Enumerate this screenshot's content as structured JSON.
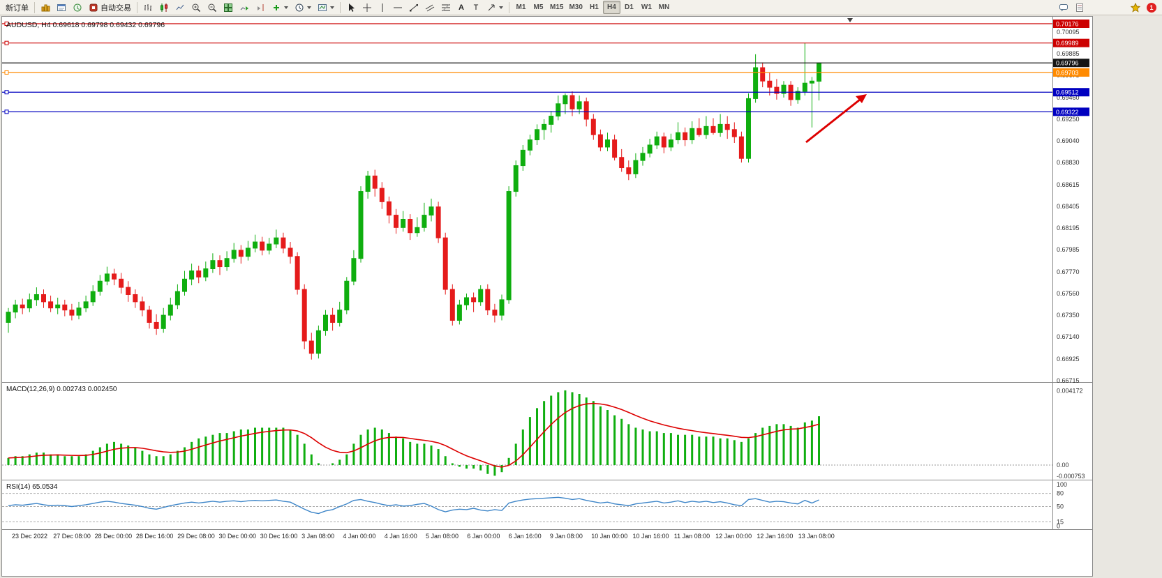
{
  "toolbar": {
    "new_order_label": "新订单",
    "auto_trading_label": "自动交易",
    "text_tool_label": "A",
    "label_tool_label": "T",
    "timeframes": [
      "M1",
      "M5",
      "M15",
      "M30",
      "H1",
      "H4",
      "D1",
      "W1",
      "MN"
    ],
    "active_timeframe": "H4",
    "notification_badge": "1"
  },
  "chart_data": {
    "type": "candlestick",
    "symbol": "AUDUSD",
    "timeframe": "H4",
    "title": "AUDUSD, H4 0.69618 0.69798 0.69432 0.69796",
    "colors": {
      "up": "#0fae0f",
      "down": "#e51b1b",
      "macd_hist": "#0fae0f",
      "macd_signal": "#dd0000",
      "rsi": "#3d85c8",
      "arrow": "#dd0000",
      "axis_text": "#333333"
    },
    "y_ticks": [
      "0.70095",
      "0.69885",
      "0.69675",
      "0.69460",
      "0.69250",
      "0.69040",
      "0.68830",
      "0.68615",
      "0.68405",
      "0.68195",
      "0.67985",
      "0.67770",
      "0.67560",
      "0.67350",
      "0.67140",
      "0.66925",
      "0.66715"
    ],
    "horizontal_lines": [
      {
        "price": 0.70176,
        "label": "0.70176",
        "color": "#cc0000",
        "handle": true
      },
      {
        "price": 0.69989,
        "label": "0.69989",
        "color": "#cc0000",
        "handle": true
      },
      {
        "price": 0.69796,
        "label": "0.69796",
        "color": "#151515",
        "handle": false
      },
      {
        "price": 0.69703,
        "label": "0.69703",
        "color": "#ff8a00",
        "handle": true
      },
      {
        "price": 0.69512,
        "label": "0.69512",
        "color": "#0000c0",
        "handle": true
      },
      {
        "price": 0.69322,
        "label": "0.69322",
        "color": "#0000c0",
        "handle": true
      }
    ],
    "x_labels": [
      "23 Dec 2022",
      "27 Dec 08:00",
      "28 Dec 00:00",
      "28 Dec 16:00",
      "29 Dec 08:00",
      "30 Dec 00:00",
      "30 Dec 16:00",
      "3 Jan 08:00",
      "4 Jan 00:00",
      "4 Jan 16:00",
      "5 Jan 08:00",
      "6 Jan 00:00",
      "6 Jan 16:00",
      "9 Jan 08:00",
      "10 Jan 00:00",
      "10 Jan 16:00",
      "11 Jan 08:00",
      "12 Jan 00:00",
      "12 Jan 16:00",
      "13 Jan 08:00"
    ],
    "candles_ohlc": [
      [
        0.6728,
        0.6742,
        0.6718,
        0.6738
      ],
      [
        0.6738,
        0.675,
        0.6732,
        0.6745
      ],
      [
        0.6745,
        0.6751,
        0.6736,
        0.6742
      ],
      [
        0.6742,
        0.6756,
        0.6738,
        0.675
      ],
      [
        0.675,
        0.6762,
        0.6744,
        0.6755
      ],
      [
        0.6755,
        0.676,
        0.6742,
        0.6748
      ],
      [
        0.6748,
        0.6754,
        0.6738,
        0.6742
      ],
      [
        0.6742,
        0.6752,
        0.6736,
        0.6745
      ],
      [
        0.6745,
        0.675,
        0.6734,
        0.674
      ],
      [
        0.674,
        0.6746,
        0.673,
        0.6735
      ],
      [
        0.6735,
        0.6748,
        0.6731,
        0.6742
      ],
      [
        0.6742,
        0.6754,
        0.6738,
        0.6748
      ],
      [
        0.6748,
        0.6764,
        0.6744,
        0.6758
      ],
      [
        0.6758,
        0.6774,
        0.6754,
        0.6768
      ],
      [
        0.6768,
        0.6782,
        0.6764,
        0.6775
      ],
      [
        0.6775,
        0.678,
        0.6764,
        0.677
      ],
      [
        0.677,
        0.6776,
        0.6756,
        0.6762
      ],
      [
        0.6762,
        0.6768,
        0.6748,
        0.6755
      ],
      [
        0.6755,
        0.676,
        0.6742,
        0.6748
      ],
      [
        0.6748,
        0.6753,
        0.6734,
        0.674
      ],
      [
        0.674,
        0.6744,
        0.6722,
        0.6728
      ],
      [
        0.6728,
        0.6736,
        0.6716,
        0.6722
      ],
      [
        0.6722,
        0.6742,
        0.6718,
        0.6735
      ],
      [
        0.6735,
        0.6752,
        0.673,
        0.6745
      ],
      [
        0.6745,
        0.6765,
        0.6741,
        0.6758
      ],
      [
        0.6758,
        0.6778,
        0.6754,
        0.677
      ],
      [
        0.677,
        0.6785,
        0.6764,
        0.6778
      ],
      [
        0.6778,
        0.6783,
        0.6766,
        0.6772
      ],
      [
        0.6772,
        0.6787,
        0.6768,
        0.678
      ],
      [
        0.678,
        0.6795,
        0.6776,
        0.6788
      ],
      [
        0.6788,
        0.6793,
        0.6774,
        0.6782
      ],
      [
        0.6782,
        0.6797,
        0.6778,
        0.679
      ],
      [
        0.679,
        0.6805,
        0.6786,
        0.6798
      ],
      [
        0.6798,
        0.6803,
        0.6785,
        0.6792
      ],
      [
        0.6792,
        0.6807,
        0.6788,
        0.68
      ],
      [
        0.68,
        0.6813,
        0.6796,
        0.6806
      ],
      [
        0.6806,
        0.6811,
        0.6793,
        0.6798
      ],
      [
        0.6798,
        0.681,
        0.6794,
        0.6804
      ],
      [
        0.6804,
        0.6818,
        0.68,
        0.681
      ],
      [
        0.681,
        0.6815,
        0.6795,
        0.68
      ],
      [
        0.68,
        0.6806,
        0.6785,
        0.6792
      ],
      [
        0.6792,
        0.6796,
        0.6755,
        0.676
      ],
      [
        0.676,
        0.6765,
        0.6702,
        0.671
      ],
      [
        0.671,
        0.6718,
        0.6692,
        0.6698
      ],
      [
        0.6698,
        0.6725,
        0.6693,
        0.672
      ],
      [
        0.672,
        0.674,
        0.6715,
        0.6735
      ],
      [
        0.6735,
        0.6742,
        0.672,
        0.6728
      ],
      [
        0.6728,
        0.6748,
        0.6724,
        0.674
      ],
      [
        0.674,
        0.6772,
        0.6736,
        0.6768
      ],
      [
        0.6768,
        0.6798,
        0.6764,
        0.679
      ],
      [
        0.679,
        0.686,
        0.6786,
        0.6855
      ],
      [
        0.6855,
        0.6875,
        0.6848,
        0.687
      ],
      [
        0.687,
        0.6876,
        0.685,
        0.6858
      ],
      [
        0.6858,
        0.6864,
        0.6838,
        0.6845
      ],
      [
        0.6845,
        0.685,
        0.6824,
        0.6832
      ],
      [
        0.6832,
        0.6838,
        0.6814,
        0.682
      ],
      [
        0.682,
        0.6836,
        0.6816,
        0.6828
      ],
      [
        0.6828,
        0.6833,
        0.6808,
        0.6815
      ],
      [
        0.6815,
        0.683,
        0.6811,
        0.682
      ],
      [
        0.682,
        0.6844,
        0.6816,
        0.6832
      ],
      [
        0.6832,
        0.6848,
        0.6826,
        0.684
      ],
      [
        0.684,
        0.6845,
        0.6805,
        0.681
      ],
      [
        0.681,
        0.6815,
        0.6755,
        0.676
      ],
      [
        0.676,
        0.6765,
        0.6725,
        0.673
      ],
      [
        0.673,
        0.675,
        0.6726,
        0.6745
      ],
      [
        0.6745,
        0.6756,
        0.674,
        0.6752
      ],
      [
        0.6752,
        0.6757,
        0.6738,
        0.6748
      ],
      [
        0.6748,
        0.6764,
        0.6744,
        0.676
      ],
      [
        0.676,
        0.6765,
        0.6735,
        0.674
      ],
      [
        0.674,
        0.6746,
        0.6728,
        0.6735
      ],
      [
        0.6735,
        0.6755,
        0.673,
        0.675
      ],
      [
        0.675,
        0.686,
        0.6746,
        0.6855
      ],
      [
        0.6855,
        0.6885,
        0.685,
        0.688
      ],
      [
        0.688,
        0.69,
        0.6875,
        0.6895
      ],
      [
        0.6895,
        0.691,
        0.689,
        0.6905
      ],
      [
        0.6905,
        0.692,
        0.69,
        0.6915
      ],
      [
        0.6915,
        0.6925,
        0.6905,
        0.692
      ],
      [
        0.692,
        0.6933,
        0.6912,
        0.6928
      ],
      [
        0.6928,
        0.6948,
        0.6924,
        0.694
      ],
      [
        0.694,
        0.695,
        0.693,
        0.6948
      ],
      [
        0.6948,
        0.6952,
        0.6928,
        0.6935
      ],
      [
        0.6935,
        0.6948,
        0.693,
        0.6942
      ],
      [
        0.6942,
        0.6946,
        0.6918,
        0.6925
      ],
      [
        0.6925,
        0.693,
        0.6905,
        0.691
      ],
      [
        0.691,
        0.6915,
        0.6894,
        0.6898
      ],
      [
        0.6898,
        0.6912,
        0.6894,
        0.6905
      ],
      [
        0.6905,
        0.691,
        0.6885,
        0.6888
      ],
      [
        0.6888,
        0.6896,
        0.6874,
        0.6878
      ],
      [
        0.6878,
        0.6885,
        0.6866,
        0.6872
      ],
      [
        0.6872,
        0.6892,
        0.6868,
        0.6885
      ],
      [
        0.6885,
        0.6898,
        0.688,
        0.6892
      ],
      [
        0.6892,
        0.6906,
        0.6888,
        0.69
      ],
      [
        0.69,
        0.6913,
        0.6896,
        0.6908
      ],
      [
        0.6908,
        0.6912,
        0.6892,
        0.6898
      ],
      [
        0.6898,
        0.6911,
        0.6894,
        0.6905
      ],
      [
        0.6905,
        0.6922,
        0.6901,
        0.6912
      ],
      [
        0.6912,
        0.6917,
        0.6899,
        0.6905
      ],
      [
        0.6905,
        0.6923,
        0.6901,
        0.6916
      ],
      [
        0.6916,
        0.6926,
        0.6908,
        0.691
      ],
      [
        0.691,
        0.6928,
        0.6906,
        0.6918
      ],
      [
        0.6918,
        0.6926,
        0.691,
        0.6912
      ],
      [
        0.6912,
        0.693,
        0.6908,
        0.692
      ],
      [
        0.692,
        0.6928,
        0.6906,
        0.6915
      ],
      [
        0.6915,
        0.6922,
        0.6902,
        0.6908
      ],
      [
        0.6908,
        0.6913,
        0.6883,
        0.6887
      ],
      [
        0.6887,
        0.695,
        0.6883,
        0.6945
      ],
      [
        0.6945,
        0.6988,
        0.6941,
        0.6975
      ],
      [
        0.6975,
        0.698,
        0.6956,
        0.6962
      ],
      [
        0.6962,
        0.697,
        0.6948,
        0.6956
      ],
      [
        0.6956,
        0.6964,
        0.6944,
        0.695
      ],
      [
        0.695,
        0.6962,
        0.6946,
        0.6958
      ],
      [
        0.6958,
        0.6962,
        0.6938,
        0.6944
      ],
      [
        0.6944,
        0.6956,
        0.694,
        0.6952
      ],
      [
        0.6952,
        0.6999,
        0.6948,
        0.696
      ],
      [
        0.696,
        0.6966,
        0.6917,
        0.6962
      ],
      [
        0.69618,
        0.69798,
        0.69432,
        0.69796
      ]
    ],
    "indicators": {
      "macd": {
        "label": "MACD(12,26,9) 0.002743 0.002450",
        "ticks": [
          "0.004172",
          "0.00",
          "-0.000753"
        ],
        "histogram": [
          0.0004,
          0.0005,
          0.0005,
          0.0006,
          0.0007,
          0.0007,
          0.0006,
          0.0006,
          0.0005,
          0.0005,
          0.0005,
          0.0006,
          0.0008,
          0.001,
          0.0012,
          0.0013,
          0.0012,
          0.0011,
          0.001,
          0.0008,
          0.0006,
          0.0005,
          0.0005,
          0.0006,
          0.0008,
          0.001,
          0.0013,
          0.0015,
          0.0016,
          0.0017,
          0.0018,
          0.0018,
          0.0019,
          0.002,
          0.002,
          0.0021,
          0.0021,
          0.0021,
          0.0021,
          0.0021,
          0.002,
          0.0017,
          0.0012,
          0.0006,
          0.0001,
          0,
          0.0001,
          0.0003,
          0.0006,
          0.0012,
          0.0017,
          0.002,
          0.0021,
          0.002,
          0.0018,
          0.0016,
          0.0015,
          0.0013,
          0.0012,
          0.0012,
          0.0011,
          0.0009,
          0.0005,
          0.0001,
          -0.0001,
          -0.0002,
          -0.0002,
          -0.0003,
          -0.0005,
          -0.0006,
          -0.0004,
          0.0004,
          0.0012,
          0.002,
          0.0027,
          0.0032,
          0.0036,
          0.0039,
          0.0041,
          0.0042,
          0.0041,
          0.004,
          0.0038,
          0.0036,
          0.0033,
          0.0031,
          0.0028,
          0.0026,
          0.0023,
          0.0021,
          0.002,
          0.0019,
          0.0019,
          0.0018,
          0.0018,
          0.0017,
          0.0017,
          0.0017,
          0.0016,
          0.0016,
          0.0016,
          0.0015,
          0.0015,
          0.0014,
          0.0013,
          0.0015,
          0.0018,
          0.0021,
          0.0022,
          0.0023,
          0.0023,
          0.0022,
          0.0021,
          0.0024,
          0.0025,
          0.002743
        ]
      },
      "rsi": {
        "label": "RSI(14) 65.0534",
        "ticks": [
          "100",
          "80",
          "50",
          "15",
          "0"
        ],
        "levels": [
          80,
          50,
          15
        ],
        "values": [
          52,
          54,
          53,
          55,
          57,
          54,
          52,
          53,
          52,
          50,
          52,
          54,
          57,
          60,
          62,
          60,
          57,
          55,
          53,
          50,
          46,
          44,
          48,
          52,
          55,
          58,
          60,
          58,
          60,
          62,
          60,
          62,
          63,
          61,
          63,
          64,
          63,
          64,
          65,
          62,
          60,
          52,
          44,
          37,
          34,
          40,
          43,
          50,
          56,
          64,
          66,
          62,
          59,
          55,
          52,
          54,
          51,
          52,
          55,
          57,
          51,
          43,
          38,
          42,
          44,
          43,
          46,
          42,
          40,
          43,
          41,
          58,
          62,
          65,
          67,
          68,
          69,
          70,
          71,
          69,
          66,
          68,
          64,
          61,
          58,
          60,
          56,
          54,
          52,
          56,
          58,
          60,
          62,
          58,
          60,
          63,
          59,
          62,
          60,
          62,
          59,
          61,
          58,
          54,
          52,
          66,
          68,
          64,
          60,
          62,
          61,
          58,
          56,
          64,
          58,
          65.05
        ]
      }
    },
    "annotation_arrow": {
      "description": "red up-right arrow",
      "color": "#dd0000"
    }
  }
}
